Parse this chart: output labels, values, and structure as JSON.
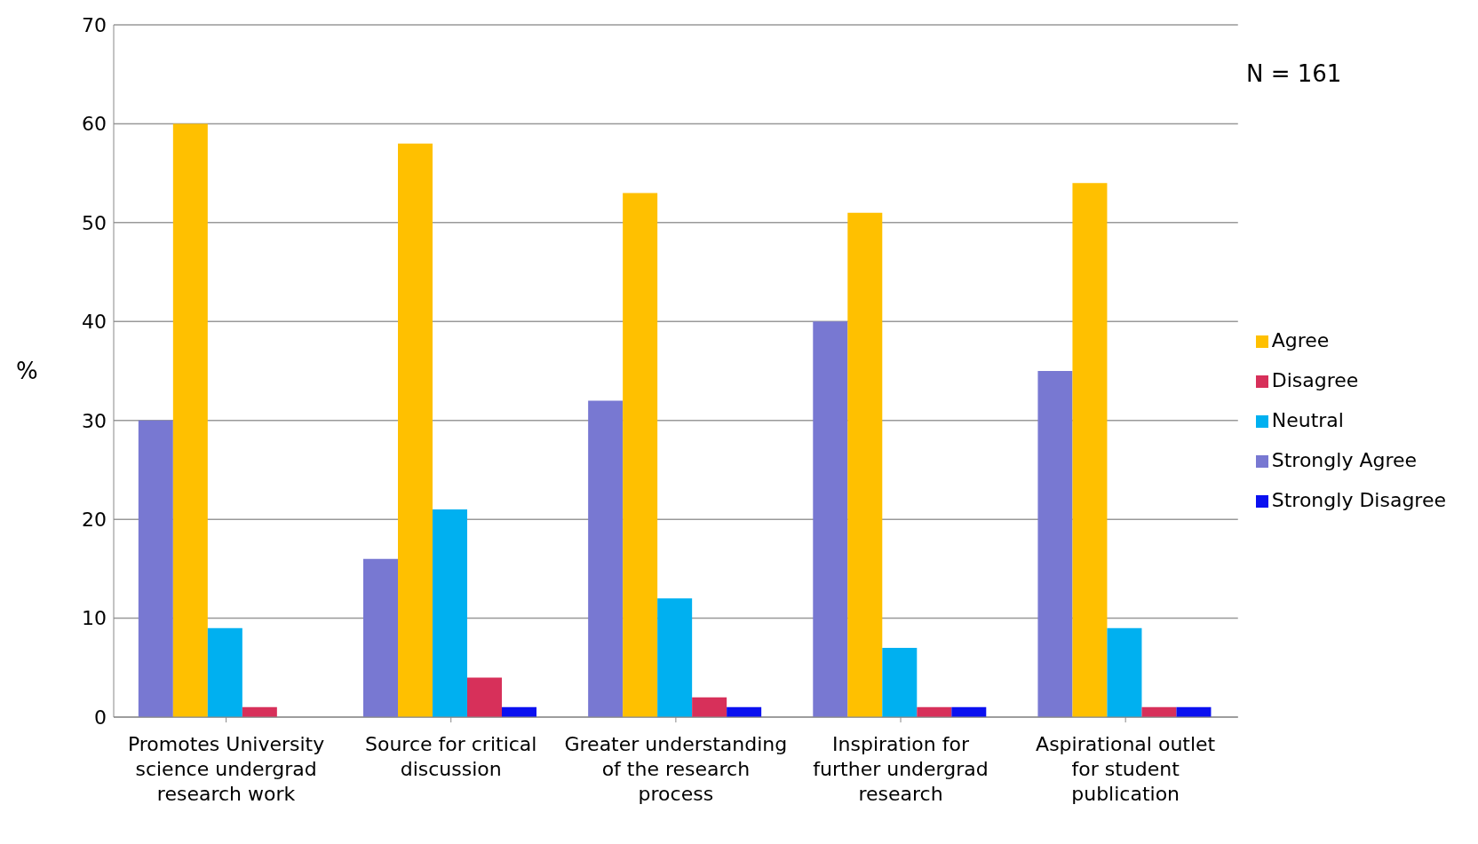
{
  "chart_data": {
    "type": "bar",
    "ylabel": "%",
    "categories": [
      "Promotes University science undergrad research work",
      "Source for critical discussion",
      "Greater understanding of the research process",
      "Inspiration for further undergrad research",
      "Aspirational outlet for student publication"
    ],
    "series": [
      {
        "name": "Strongly Agree",
        "color": "#7878d2",
        "values": [
          30,
          16,
          32,
          40,
          35
        ]
      },
      {
        "name": "Agree",
        "color": "#ffc000",
        "values": [
          60,
          58,
          53,
          51,
          54
        ]
      },
      {
        "name": "Neutral",
        "color": "#00b0f0",
        "values": [
          9,
          21,
          12,
          7,
          9
        ]
      },
      {
        "name": "Disagree",
        "color": "#d7305a",
        "values": [
          1,
          4,
          2,
          1,
          1
        ]
      },
      {
        "name": "Strongly Disagree",
        "color": "#0a10f0",
        "values": [
          0,
          1,
          1,
          1,
          1
        ]
      }
    ],
    "ylim": [
      0,
      70
    ],
    "yticks": [
      0,
      10,
      20,
      30,
      40,
      50,
      60,
      70
    ],
    "grid": "y",
    "legend": "right",
    "annotations": [
      "N = 161"
    ]
  }
}
